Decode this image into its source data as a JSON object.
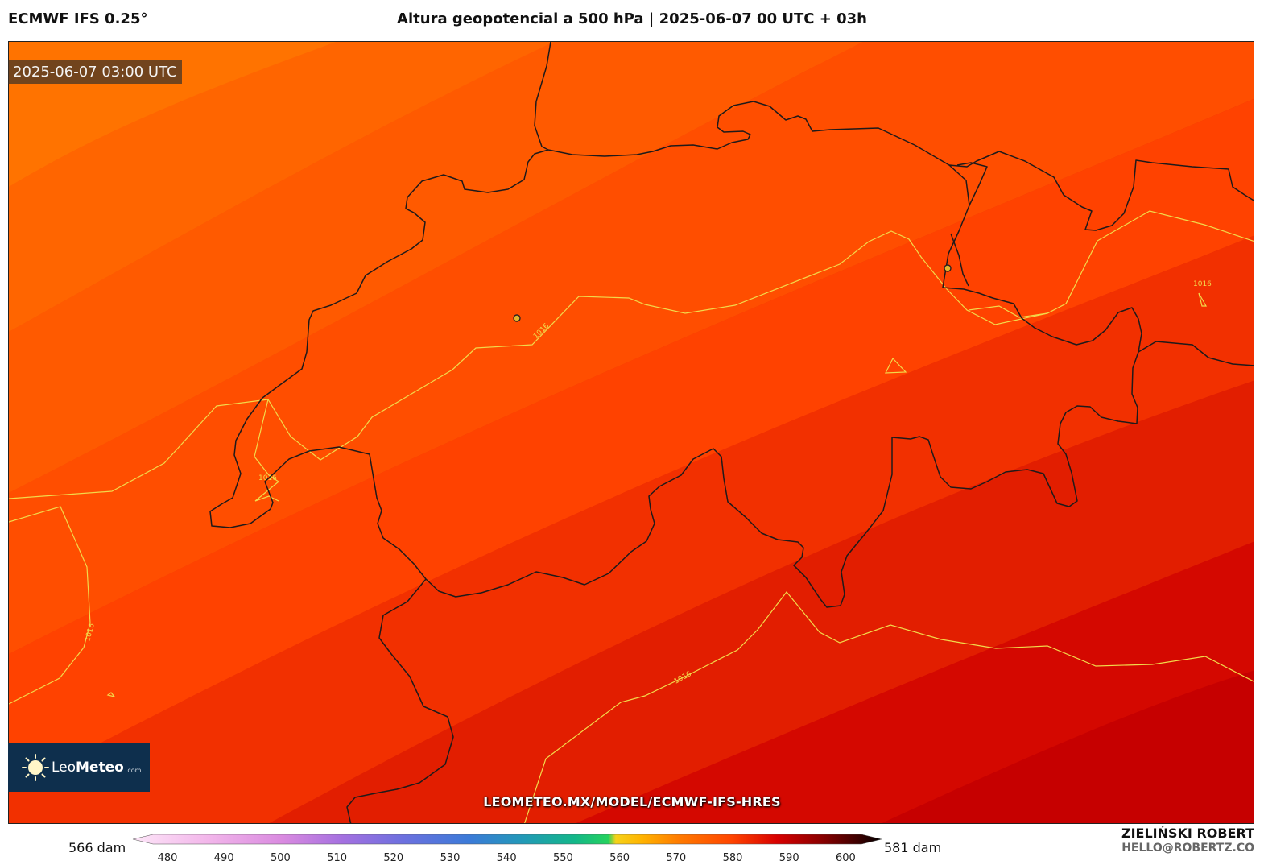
{
  "header": {
    "model": "ECMWF IFS 0.25°",
    "title": "Altura geopotencial a 500 hPa | 2025-06-07 00 UTC + 03h"
  },
  "map": {
    "valid_time": "2025-06-07 03:00 UTC",
    "isobar_label": "1016",
    "site_url": "LEOMETEO.MX/MODEL/ECMWF-IFS-HRES",
    "logo": {
      "name_light": "Leo",
      "name_bold": "Meteo",
      "domain": ".com"
    },
    "colors": {
      "isobar": "#f2d94a",
      "border": "#1f1a1a",
      "city_marker": "#e0b530"
    }
  },
  "colorbar": {
    "range_min": "566 dam",
    "range_max": "581 dam",
    "ticks": [
      "480",
      "490",
      "500",
      "510",
      "520",
      "530",
      "540",
      "550",
      "560",
      "570",
      "580",
      "590",
      "600"
    ]
  },
  "footer": {
    "author": "ZIELIŃSKI ROBERT",
    "email": "HELLO@ROBERTZ.CO"
  }
}
